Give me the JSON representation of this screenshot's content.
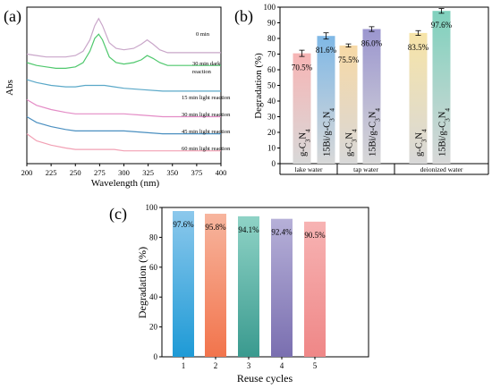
{
  "chart_data": [
    {
      "type": "line",
      "panel_label": "(a)",
      "xlabel": "Wavelength (nm)",
      "ylabel": "Abs",
      "xlim": [
        200,
        400
      ],
      "x_ticks": [
        "200",
        "225",
        "250",
        "275",
        "300",
        "325",
        "350",
        "375",
        "400"
      ],
      "grid": false,
      "legend": "inline labels at right",
      "series": [
        {
          "name": "0 min",
          "color": "#c9a6c9",
          "x": [
            200,
            210,
            220,
            230,
            240,
            250,
            258,
            265,
            270,
            274,
            278,
            285,
            292,
            300,
            310,
            318,
            324,
            330,
            337,
            345,
            360,
            380,
            400
          ],
          "y": [
            0.92,
            0.91,
            0.9,
            0.9,
            0.9,
            0.91,
            0.94,
            1.02,
            1.12,
            1.17,
            1.12,
            1.0,
            0.96,
            0.95,
            0.96,
            0.99,
            1.02,
            0.99,
            0.95,
            0.93,
            0.93,
            0.93,
            0.93
          ]
        },
        {
          "name": "30 min dark reaction",
          "color": "#4fc86d",
          "x": [
            200,
            210,
            220,
            230,
            240,
            250,
            258,
            265,
            270,
            274,
            278,
            285,
            292,
            300,
            310,
            318,
            324,
            330,
            337,
            345,
            360,
            380,
            400
          ],
          "y": [
            0.86,
            0.84,
            0.83,
            0.82,
            0.82,
            0.83,
            0.86,
            0.94,
            1.03,
            1.06,
            1.02,
            0.9,
            0.86,
            0.85,
            0.86,
            0.88,
            0.91,
            0.89,
            0.86,
            0.84,
            0.84,
            0.84,
            0.84
          ]
        },
        {
          "name": "15 min light reaction",
          "color": "#5aa8c8",
          "x": [
            200,
            210,
            225,
            240,
            250,
            260,
            270,
            280,
            290,
            300,
            320,
            340,
            360,
            380,
            400
          ],
          "y": [
            0.74,
            0.72,
            0.7,
            0.69,
            0.69,
            0.7,
            0.7,
            0.7,
            0.69,
            0.68,
            0.67,
            0.66,
            0.66,
            0.66,
            0.66
          ]
        },
        {
          "name": "30 min light reaction",
          "color": "#e48cc6",
          "x": [
            200,
            210,
            225,
            240,
            250,
            260,
            270,
            280,
            290,
            300,
            320,
            340,
            360,
            380,
            400
          ],
          "y": [
            0.6,
            0.56,
            0.53,
            0.51,
            0.5,
            0.5,
            0.5,
            0.5,
            0.5,
            0.5,
            0.49,
            0.48,
            0.48,
            0.48,
            0.48
          ]
        },
        {
          "name": "45 min light reaction",
          "color": "#4a8fc0",
          "x": [
            200,
            210,
            225,
            240,
            250,
            260,
            270,
            280,
            290,
            300,
            320,
            340,
            360,
            380,
            400
          ],
          "y": [
            0.48,
            0.44,
            0.41,
            0.39,
            0.38,
            0.38,
            0.38,
            0.38,
            0.38,
            0.38,
            0.37,
            0.36,
            0.36,
            0.36,
            0.36
          ]
        },
        {
          "name": "60 min light reaction",
          "color": "#f2a0b4",
          "x": [
            200,
            210,
            225,
            240,
            250,
            260,
            270,
            280,
            290,
            300,
            320,
            340,
            360,
            380,
            400
          ],
          "y": [
            0.36,
            0.31,
            0.28,
            0.26,
            0.25,
            0.25,
            0.25,
            0.25,
            0.25,
            0.24,
            0.24,
            0.24,
            0.24,
            0.24,
            0.24
          ]
        }
      ],
      "series_labels": [
        {
          "lines": [
            "0 min"
          ]
        },
        {
          "lines": [
            "30 min dark",
            "reaction"
          ]
        },
        {
          "lines": [
            "15 min light reaction"
          ]
        },
        {
          "lines": [
            "30 min light reaction"
          ]
        },
        {
          "lines": [
            "45 min light reaction"
          ]
        },
        {
          "lines": [
            "60 min light reaction"
          ]
        }
      ]
    },
    {
      "type": "bar",
      "panel_label": "(b)",
      "ylabel": "Degradation (%)",
      "ylim": [
        0,
        100
      ],
      "y_ticks": [
        "0",
        "10",
        "20",
        "30",
        "40",
        "50",
        "60",
        "70",
        "80",
        "90",
        "100"
      ],
      "groups": [
        "lake water",
        "tap water",
        "deionized water"
      ],
      "grid": false,
      "bars": [
        {
          "group": "lake water",
          "category": "g-C3N4",
          "value": 70.5,
          "label": "70.5%",
          "top_color": "#f7b5b5",
          "error": 2.0
        },
        {
          "group": "lake water",
          "category": "15Bi/g-C3N4",
          "value": 81.6,
          "label": "81.6%",
          "top_color": "#7fb8e6",
          "error": 2.0
        },
        {
          "group": "tap water",
          "category": "g-C3N4",
          "value": 75.5,
          "label": "75.5%",
          "top_color": "#f7d9a6",
          "error": 1.0
        },
        {
          "group": "tap water",
          "category": "15Bi/g-C3N4",
          "value": 86.0,
          "label": "86.0%",
          "top_color": "#9b96cf",
          "error": 1.5
        },
        {
          "group": "deionized water",
          "category": "g-C3N4",
          "value": 83.5,
          "label": "83.5%",
          "top_color": "#f7e4a8",
          "error": 1.5
        },
        {
          "group": "deionized water",
          "category": "15Bi/g-C3N4",
          "value": 97.6,
          "label": "97.6%",
          "top_color": "#7fd1bd",
          "error": 1.5
        }
      ]
    },
    {
      "type": "bar",
      "panel_label": "(c)",
      "xlabel": "Reuse cycles",
      "ylabel": "Degradation (%)",
      "ylim": [
        0,
        100
      ],
      "y_ticks": [
        "0",
        "20",
        "40",
        "60",
        "80",
        "100"
      ],
      "categories": [
        "1",
        "2",
        "3",
        "4",
        "5"
      ],
      "values": [
        97.6,
        95.8,
        94.1,
        92.4,
        90.5
      ],
      "labels": [
        "97.6%",
        "95.8%",
        "94.1%",
        "92.4%",
        "90.5%"
      ],
      "top_colors": [
        "#8cc8ec",
        "#f7b59e",
        "#8fd3c6",
        "#b6b0d8",
        "#f7b3b3"
      ],
      "bottom_colors": [
        "#1e9ad6",
        "#f2744c",
        "#3a9a8f",
        "#7a6fb0",
        "#ef8787"
      ],
      "grid": false
    }
  ]
}
